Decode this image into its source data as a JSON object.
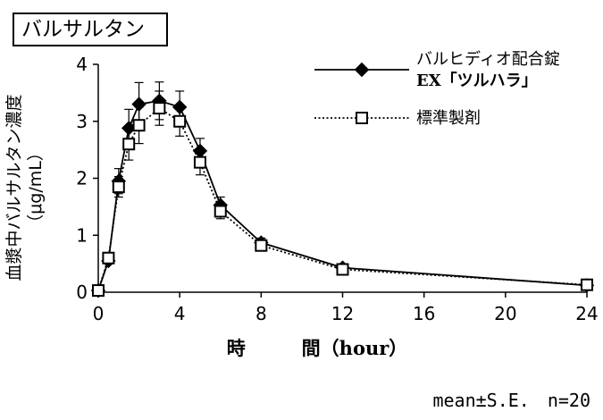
{
  "chart_data": {
    "type": "line",
    "title": "バルサルタン",
    "xlabel": "時　　　間（hour）",
    "ylabel_main": "血漿中バルサルタン濃度",
    "ylabel_unit": "（μg/mL）",
    "xlim": [
      0,
      24
    ],
    "ylim": [
      0,
      4
    ],
    "x_ticks": [
      "0",
      "4",
      "8",
      "12",
      "16",
      "20",
      "24"
    ],
    "y_ticks": [
      "0",
      "1",
      "2",
      "3",
      "4"
    ],
    "grid": false,
    "legend_position": "top-right",
    "series": [
      {
        "name": "バルヒディオ配合錠 EX「ツルハラ」",
        "legend_lines": [
          "バルヒディオ配合錠",
          "EX「ツルハラ」"
        ],
        "marker": "diamond-filled",
        "line": "solid",
        "color": "#000000",
        "x": [
          0,
          0.5,
          1,
          1.5,
          2,
          3,
          4,
          5,
          6,
          8,
          12,
          24
        ],
        "values": [
          0.03,
          0.55,
          1.95,
          2.88,
          3.3,
          3.36,
          3.25,
          2.48,
          1.53,
          0.87,
          0.43,
          0.12
        ],
        "errors": [
          0,
          0.05,
          0.22,
          0.33,
          0.38,
          0.33,
          0.28,
          0.22,
          0.14,
          0.08,
          0.05,
          0.03
        ]
      },
      {
        "name": "標準製剤",
        "legend_lines": [
          "標準製剤"
        ],
        "marker": "square-open",
        "line": "dotted",
        "color": "#000000",
        "x": [
          0,
          0.5,
          1,
          1.5,
          2,
          3,
          4,
          5,
          6,
          8,
          12,
          24
        ],
        "values": [
          0.03,
          0.6,
          1.85,
          2.6,
          2.93,
          3.23,
          3.0,
          2.28,
          1.42,
          0.82,
          0.4,
          0.13
        ],
        "errors": [
          0,
          0.05,
          0.18,
          0.28,
          0.32,
          0.3,
          0.26,
          0.22,
          0.13,
          0.07,
          0.04,
          0.03
        ]
      }
    ],
    "footnote": "mean±S.E.　n=20"
  }
}
